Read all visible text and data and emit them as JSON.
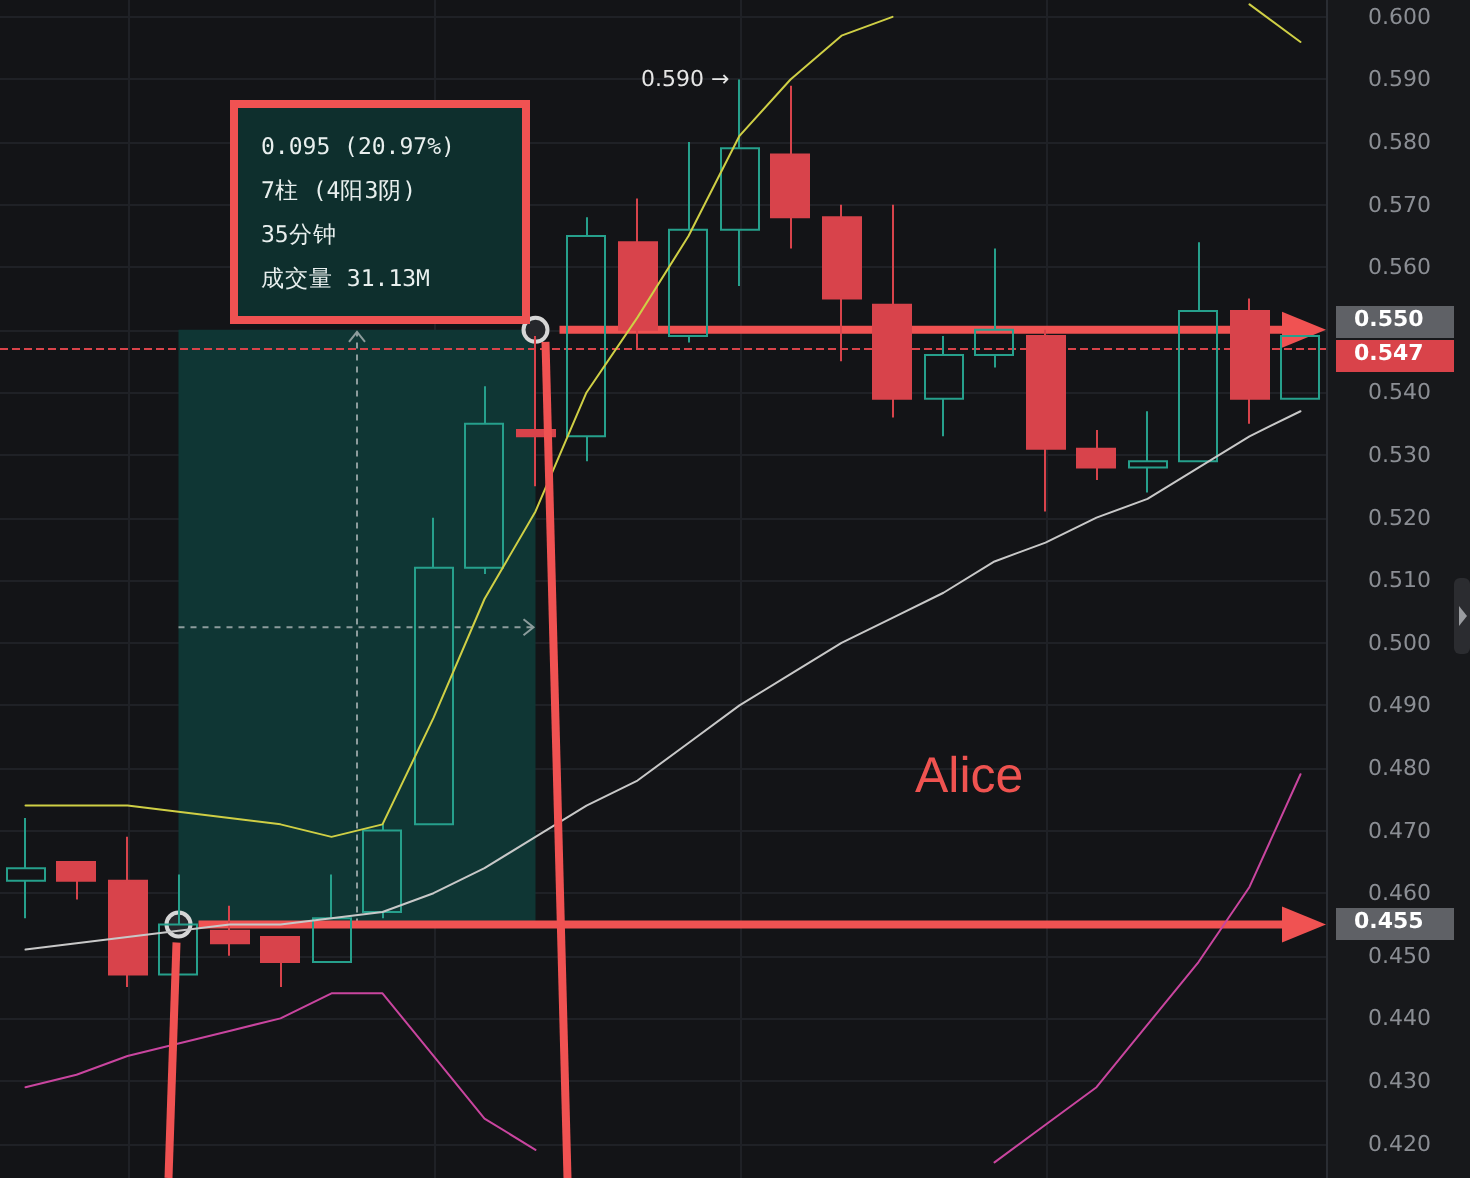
{
  "chart_data": {
    "type": "candlestick",
    "categories": [
      null,
      null,
      null,
      null,
      null,
      null,
      null,
      null,
      null,
      null,
      null,
      null,
      null,
      null,
      null,
      null,
      null,
      null,
      null,
      null,
      null,
      null,
      null,
      null,
      null,
      null
    ],
    "ohlc": [
      [
        0.462,
        0.472,
        0.456,
        0.464
      ],
      [
        0.465,
        0.465,
        0.459,
        0.462
      ],
      [
        0.462,
        0.469,
        0.445,
        0.447
      ],
      [
        0.447,
        0.463,
        0.447,
        0.455
      ],
      [
        0.454,
        0.458,
        0.45,
        0.452
      ],
      [
        0.453,
        0.453,
        0.445,
        0.449
      ],
      [
        0.449,
        0.463,
        0.449,
        0.456
      ],
      [
        0.457,
        0.471,
        0.456,
        0.47
      ],
      [
        0.471,
        0.52,
        0.471,
        0.512
      ],
      [
        0.512,
        0.541,
        0.511,
        0.535
      ],
      [
        0.534,
        0.549,
        0.525,
        0.533
      ],
      [
        0.533,
        0.568,
        0.529,
        0.565
      ],
      [
        0.564,
        0.571,
        0.547,
        0.55
      ],
      [
        0.549,
        0.58,
        0.548,
        0.566
      ],
      [
        0.566,
        0.59,
        0.557,
        0.579
      ],
      [
        0.578,
        0.589,
        0.563,
        0.568
      ],
      [
        0.568,
        0.57,
        0.545,
        0.555
      ],
      [
        0.554,
        0.57,
        0.536,
        0.539
      ],
      [
        0.539,
        0.549,
        0.533,
        0.546
      ],
      [
        0.546,
        0.563,
        0.544,
        0.55
      ],
      [
        0.549,
        0.55,
        0.521,
        0.531
      ],
      [
        0.531,
        0.534,
        0.526,
        0.528
      ],
      [
        0.528,
        0.537,
        0.524,
        0.529
      ],
      [
        0.529,
        0.564,
        0.529,
        0.553
      ],
      [
        0.553,
        0.555,
        0.535,
        0.539
      ],
      [
        0.539,
        0.549,
        0.539,
        0.549
      ]
    ],
    "colors": [
      "#26a08c",
      "#d8434b",
      "#d8434b",
      "#26a08c",
      "#d8434b",
      "#d8434b",
      "#26a08c",
      "#26a08c",
      "#26a08c",
      "#26a08c",
      "#d8434b",
      "#26a08c",
      "#d8434b",
      "#26a08c",
      "#26a08c",
      "#d8434b",
      "#d8434b",
      "#d8434b",
      "#26a08c",
      "#26a08c",
      "#d8434b",
      "#d8434b",
      "#26a08c",
      "#26a08c",
      "#d8434b",
      "#26a08c"
    ],
    "series": [
      {
        "type": "line",
        "color": "#cfcf45",
        "values": [
          0.474,
          0.474,
          0.474,
          0.473,
          0.472,
          0.471,
          0.469,
          0.471,
          0.488,
          0.507,
          0.521,
          0.54,
          0.552,
          0.565,
          0.581,
          0.59,
          0.597,
          0.6,
          null,
          null,
          null,
          null,
          null,
          null,
          0.602,
          0.596
        ]
      },
      {
        "type": "line",
        "color": "#c8c8c8",
        "values": [
          0.451,
          0.452,
          0.453,
          0.454,
          0.455,
          0.455,
          0.456,
          0.457,
          0.46,
          0.464,
          0.469,
          0.474,
          0.478,
          0.484,
          0.49,
          0.495,
          0.5,
          0.504,
          0.508,
          0.513,
          0.516,
          0.52,
          0.523,
          0.528,
          0.533,
          0.537
        ]
      },
      {
        "type": "line",
        "color": "#c9459f",
        "values": [
          0.429,
          0.431,
          0.434,
          0.436,
          0.438,
          0.44,
          0.444,
          0.444,
          0.434,
          0.424,
          0.419,
          null,
          null,
          null,
          null,
          null,
          null,
          null,
          null,
          0.417,
          0.423,
          0.429,
          0.439,
          0.449,
          0.461,
          0.479
        ]
      }
    ],
    "ylim": [
      0.4145,
      0.6027
    ],
    "yticks": [
      {
        "value": 0.42,
        "label": "0.420"
      },
      {
        "value": 0.43,
        "label": "0.430"
      },
      {
        "value": 0.44,
        "label": "0.440"
      },
      {
        "value": 0.45,
        "label": "0.450"
      },
      {
        "value": 0.46,
        "label": "0.460"
      },
      {
        "value": 0.47,
        "label": "0.470"
      },
      {
        "value": 0.48,
        "label": "0.480"
      },
      {
        "value": 0.49,
        "label": "0.490"
      },
      {
        "value": 0.5,
        "label": "0.500"
      },
      {
        "value": 0.51,
        "label": "0.510"
      },
      {
        "value": 0.52,
        "label": "0.520"
      },
      {
        "value": 0.53,
        "label": "0.530"
      },
      {
        "value": 0.54,
        "label": "0.540"
      },
      {
        "value": 0.55,
        "label": null
      },
      {
        "value": 0.56,
        "label": "0.560"
      },
      {
        "value": 0.57,
        "label": "0.570"
      },
      {
        "value": 0.58,
        "label": "0.580"
      },
      {
        "value": 0.59,
        "label": "0.590"
      },
      {
        "value": 0.6,
        "label": "0.600"
      }
    ],
    "grid": true,
    "tick_labels": "y",
    "marker": "none",
    "ref_lines": [
      {
        "axis": "y",
        "value": 0.547,
        "label": "0.547",
        "color": "#d9434a",
        "line_style": "dashed"
      },
      {
        "axis": "y",
        "value": 0.55,
        "label": "0.550",
        "color": "#f05252"
      },
      {
        "axis": "y",
        "value": 0.455,
        "label": "0.455",
        "color": "#f05252"
      }
    ],
    "bands": [
      {
        "axis": "y",
        "from": 0.455,
        "to": 0.55,
        "color": "#0f3634"
      }
    ],
    "annotations": [
      "0.095 (20.97%)",
      "7柱 (4阳3阴)",
      "35分钟",
      "成交量 31.13M",
      "0.590 →",
      "Alice"
    ]
  }
}
